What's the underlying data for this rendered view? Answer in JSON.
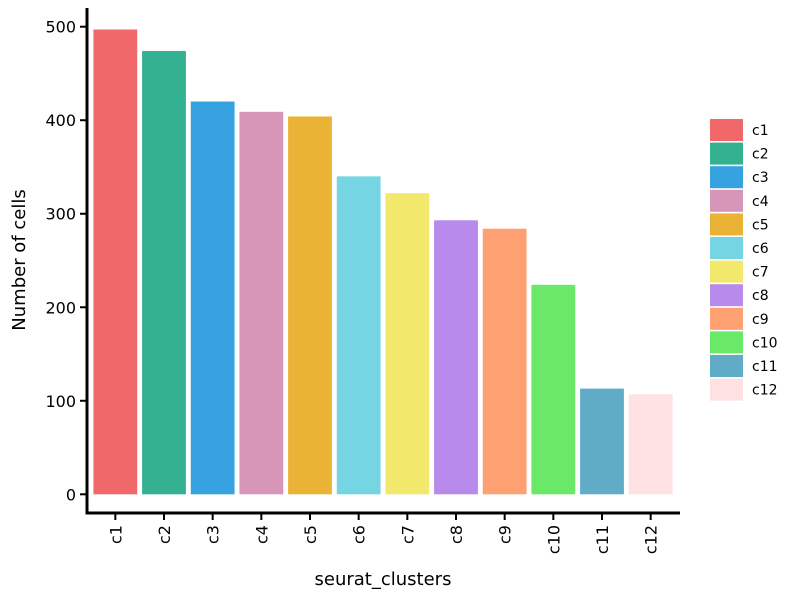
{
  "chart_data": {
    "type": "bar",
    "title": "",
    "xlabel": "seurat_clusters",
    "ylabel": "Number of cells",
    "categories": [
      "c1",
      "c2",
      "c3",
      "c4",
      "c5",
      "c6",
      "c7",
      "c8",
      "c9",
      "c10",
      "c11",
      "c12"
    ],
    "values": [
      497,
      474,
      420,
      409,
      404,
      340,
      322,
      293,
      284,
      224,
      113,
      107
    ],
    "colors": [
      "#F0686A",
      "#33B191",
      "#36A3E0",
      "#D796B8",
      "#EBB335",
      "#76D5E3",
      "#F2E96C",
      "#B78AEB",
      "#FFA073",
      "#6AE968",
      "#60ACC6",
      "#FFE1E1"
    ],
    "ylim": [
      -20,
      520
    ],
    "yticks": [
      0,
      100,
      200,
      300,
      400,
      500
    ],
    "grid": false,
    "legend": {
      "position": "right",
      "entries": [
        "c1",
        "c2",
        "c3",
        "c4",
        "c5",
        "c6",
        "c7",
        "c8",
        "c9",
        "c10",
        "c11",
        "c12"
      ]
    }
  }
}
